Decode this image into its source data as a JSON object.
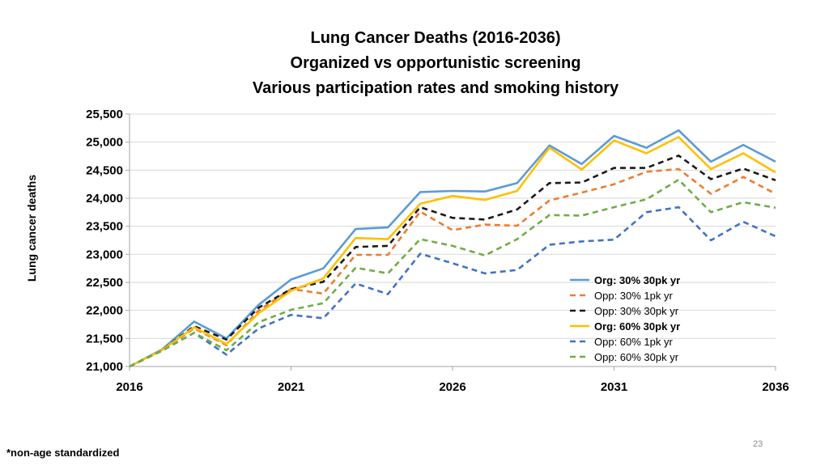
{
  "slide": {
    "footnote": "*non-age standardized",
    "page_number": "23"
  },
  "chart_data": {
    "type": "line",
    "title_lines": [
      "Lung Cancer Deaths (2016-2036)",
      "Organized vs opportunistic screening",
      "Various participation rates and smoking history"
    ],
    "xlabel": "",
    "ylabel": "Lung cancer deaths",
    "ylim": [
      21000,
      25500
    ],
    "xlim": [
      2016,
      2036
    ],
    "y_ticks": [
      "21,000",
      "21,500",
      "22,000",
      "22,500",
      "23,000",
      "23,500",
      "24,000",
      "24,500",
      "25,000",
      "25,500"
    ],
    "y_tick_values": [
      21000,
      21500,
      22000,
      22500,
      23000,
      23500,
      24000,
      24500,
      25000,
      25500
    ],
    "x_ticks": [
      "2016",
      "2021",
      "2026",
      "2031",
      "2036"
    ],
    "x_tick_values": [
      2016,
      2021,
      2026,
      2031,
      2036
    ],
    "grid": "horizontal",
    "legend_position": "bottom-right",
    "x": [
      2016,
      2017,
      2018,
      2019,
      2020,
      2021,
      2022,
      2023,
      2024,
      2025,
      2026,
      2027,
      2028,
      2029,
      2030,
      2031,
      2032,
      2033,
      2034,
      2035,
      2036
    ],
    "series": [
      {
        "name": "Org: 30% 30pk yr",
        "color": "#5B9BD5",
        "dash": "solid",
        "bold_label": true,
        "values": [
          21000,
          21300,
          21800,
          21500,
          22100,
          22550,
          22750,
          23450,
          23480,
          24110,
          24130,
          24120,
          24270,
          24940,
          24610,
          25110,
          24900,
          25210,
          24650,
          24950,
          24650
        ]
      },
      {
        "name": "Opp: 30% 1pk yr",
        "color": "#ED7D31",
        "dash": "dashed",
        "bold_label": false,
        "values": [
          21000,
          21280,
          21680,
          21380,
          22000,
          22380,
          22300,
          22990,
          22990,
          23760,
          23430,
          23530,
          23510,
          23960,
          24100,
          24250,
          24470,
          24520,
          24080,
          24380,
          24080
        ]
      },
      {
        "name": "Opp: 30% 30pk yr",
        "color": "#1a1a1a",
        "dash": "dashed",
        "bold_label": false,
        "values": [
          21000,
          21290,
          21720,
          21480,
          22050,
          22380,
          22510,
          23130,
          23150,
          23840,
          23650,
          23620,
          23800,
          24270,
          24280,
          24540,
          24540,
          24760,
          24340,
          24530,
          24320
        ]
      },
      {
        "name": "Org: 60% 30pk yr",
        "color": "#FFC000",
        "dash": "solid",
        "bold_label": true,
        "values": [
          21000,
          21290,
          21700,
          21400,
          21950,
          22350,
          22570,
          23290,
          23270,
          23900,
          24040,
          23970,
          24130,
          24900,
          24510,
          25030,
          24800,
          25090,
          24520,
          24800,
          24460
        ]
      },
      {
        "name": "Opp: 60% 1pk yr",
        "color": "#4472C4",
        "dash": "dashed",
        "bold_label": false,
        "values": [
          21000,
          21280,
          21600,
          21210,
          21680,
          21920,
          21860,
          22480,
          22290,
          23010,
          22840,
          22660,
          22720,
          23170,
          23230,
          23260,
          23750,
          23840,
          23250,
          23580,
          23320
        ]
      },
      {
        "name": "Opp: 60% 30pk yr",
        "color": "#70AD47",
        "dash": "dashed",
        "bold_label": false,
        "values": [
          21000,
          21280,
          21600,
          21290,
          21790,
          22010,
          22130,
          22760,
          22660,
          23270,
          23150,
          22980,
          23270,
          23700,
          23690,
          23840,
          23980,
          24330,
          23750,
          23930,
          23830
        ]
      }
    ]
  }
}
